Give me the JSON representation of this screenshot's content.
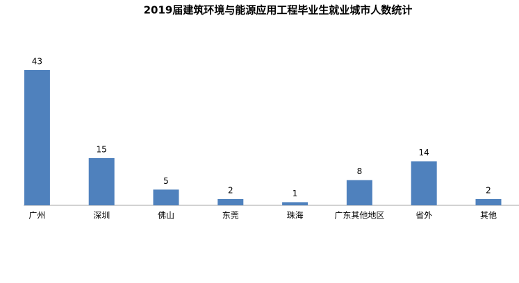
{
  "chart_data": {
    "type": "bar",
    "title": "2019届建筑环境与能源应用工程毕业生就业城市人数统计",
    "categories": [
      "广州",
      "深圳",
      "佛山",
      "东莞",
      "珠海",
      "广东其他地区",
      "省外",
      "其他"
    ],
    "values": [
      43,
      15,
      5,
      2,
      1,
      8,
      14,
      2
    ],
    "color": "#4f81bd"
  }
}
